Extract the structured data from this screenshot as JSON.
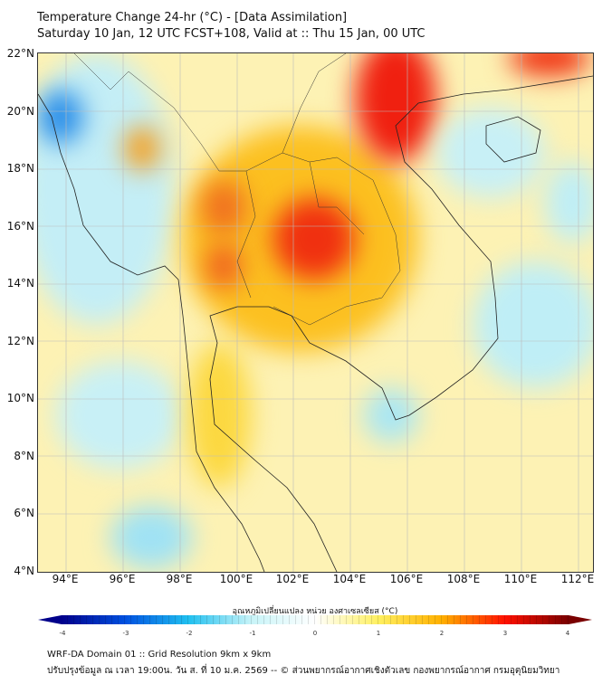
{
  "title": {
    "line1": "Temperature Change 24-hr (°C) - [Data Assimilation]",
    "line2": "Saturday 10 Jan, 12 UTC FCST+108, Valid at :: Thu 15 Jan, 00 UTC"
  },
  "map": {
    "lat_labels": [
      "22°N",
      "20°N",
      "18°N",
      "16°N",
      "14°N",
      "12°N",
      "10°N",
      "8°N",
      "6°N",
      "4°N"
    ],
    "lon_labels": [
      "94°E",
      "96°E",
      "98°E",
      "100°E",
      "102°E",
      "104°E",
      "106°E",
      "108°E",
      "110°E",
      "112°E"
    ]
  },
  "colorbar": {
    "label": "อุณหภูมิเปลี่ยนแปลง หน่วย องศาเซลเซียส (°C)",
    "ticks": [
      "-4",
      "-3",
      "-2",
      "-1",
      "0",
      "1",
      "2",
      "3",
      "4"
    ],
    "colors": [
      "#00008b",
      "#0050e0",
      "#20c0f0",
      "#c8f4f8",
      "#ffffff",
      "#fff060",
      "#ffb000",
      "#ff1000",
      "#7a0000"
    ]
  },
  "footer": {
    "line1": "WRF-DA Domain 01 :: Grid Resolution 9km x 9km",
    "line2": "ปรับปรุงข้อมูล ณ เวลา 19:00น. วัน ส. ที่ 10 ม.ค. 2569 -- © ส่วนพยากรณ์อากาศเชิงตัวเลข กองพยากรณ์อากาศ กรมอุตุนิยมวิทยา"
  }
}
